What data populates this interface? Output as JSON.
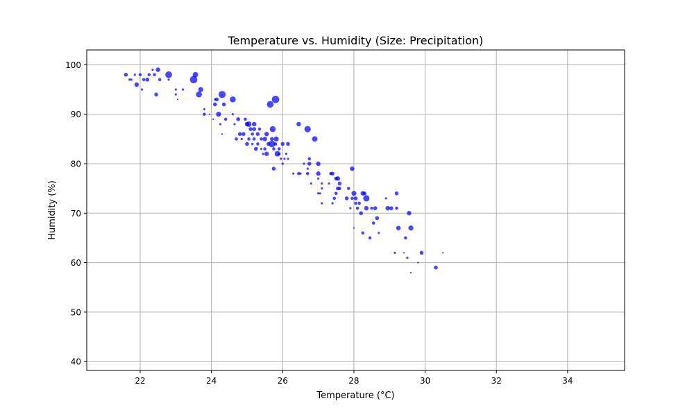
{
  "chart_data": {
    "type": "scatter",
    "title": "Temperature vs. Humidity (Size: Precipitation)",
    "xlabel": "Temperature (°C)",
    "ylabel": "Humidity (%)",
    "xlim": [
      20.5,
      35.6
    ],
    "ylim": [
      38.2,
      103
    ],
    "xticks": [
      22,
      24,
      26,
      28,
      30,
      32,
      34
    ],
    "yticks": [
      40,
      50,
      60,
      70,
      80,
      90,
      100
    ],
    "xtick_labels": [
      "22",
      "24",
      "26",
      "28",
      "30",
      "32",
      "34"
    ],
    "ytick_labels": [
      "40",
      "50",
      "60",
      "70",
      "80",
      "90",
      "100"
    ],
    "grid": true,
    "legend": "none",
    "colors": {
      "point": "#0000ff",
      "grid": "#b0b0b0",
      "axis": "#000000"
    },
    "size_encoding": "Precipitation",
    "points": [
      {
        "x": 21.6,
        "y": 98,
        "p": 3
      },
      {
        "x": 21.7,
        "y": 97,
        "p": 1
      },
      {
        "x": 21.75,
        "y": 97,
        "p": 1
      },
      {
        "x": 21.85,
        "y": 98,
        "p": 1
      },
      {
        "x": 21.9,
        "y": 96,
        "p": 4
      },
      {
        "x": 22.0,
        "y": 98,
        "p": 2
      },
      {
        "x": 22.05,
        "y": 95,
        "p": 1
      },
      {
        "x": 22.1,
        "y": 97,
        "p": 2
      },
      {
        "x": 22.2,
        "y": 97,
        "p": 3
      },
      {
        "x": 22.25,
        "y": 98,
        "p": 2
      },
      {
        "x": 22.35,
        "y": 99,
        "p": 1
      },
      {
        "x": 22.4,
        "y": 98,
        "p": 2
      },
      {
        "x": 22.45,
        "y": 94,
        "p": 3
      },
      {
        "x": 22.5,
        "y": 99,
        "p": 4
      },
      {
        "x": 22.55,
        "y": 97,
        "p": 2
      },
      {
        "x": 22.8,
        "y": 98,
        "p": 9
      },
      {
        "x": 22.8,
        "y": 97,
        "p": 1
      },
      {
        "x": 23.0,
        "y": 95,
        "p": 1
      },
      {
        "x": 23.0,
        "y": 94,
        "p": 1
      },
      {
        "x": 23.05,
        "y": 93,
        "p": 0.5
      },
      {
        "x": 23.2,
        "y": 95,
        "p": 1
      },
      {
        "x": 23.5,
        "y": 97,
        "p": 11
      },
      {
        "x": 23.55,
        "y": 98,
        "p": 6
      },
      {
        "x": 23.65,
        "y": 94,
        "p": 7
      },
      {
        "x": 23.7,
        "y": 95,
        "p": 5
      },
      {
        "x": 23.8,
        "y": 90,
        "p": 2
      },
      {
        "x": 23.8,
        "y": 91,
        "p": 1
      },
      {
        "x": 23.95,
        "y": 90,
        "p": 0.5
      },
      {
        "x": 24.05,
        "y": 89,
        "p": 0.5
      },
      {
        "x": 24.1,
        "y": 93,
        "p": 1
      },
      {
        "x": 24.1,
        "y": 92,
        "p": 3
      },
      {
        "x": 24.15,
        "y": 93,
        "p": 3
      },
      {
        "x": 24.2,
        "y": 90,
        "p": 5
      },
      {
        "x": 24.25,
        "y": 88,
        "p": 1
      },
      {
        "x": 24.3,
        "y": 94,
        "p": 10
      },
      {
        "x": 24.3,
        "y": 86,
        "p": 0.5
      },
      {
        "x": 24.35,
        "y": 92,
        "p": 3
      },
      {
        "x": 24.4,
        "y": 89,
        "p": 2
      },
      {
        "x": 24.6,
        "y": 93,
        "p": 7
      },
      {
        "x": 24.6,
        "y": 90,
        "p": 1
      },
      {
        "x": 24.65,
        "y": 88,
        "p": 1
      },
      {
        "x": 24.7,
        "y": 85,
        "p": 2
      },
      {
        "x": 24.75,
        "y": 89,
        "p": 3
      },
      {
        "x": 24.8,
        "y": 86,
        "p": 3
      },
      {
        "x": 24.85,
        "y": 85,
        "p": 1
      },
      {
        "x": 24.9,
        "y": 86,
        "p": 3
      },
      {
        "x": 24.95,
        "y": 89,
        "p": 2
      },
      {
        "x": 25.0,
        "y": 88,
        "p": 4
      },
      {
        "x": 25.0,
        "y": 84,
        "p": 3
      },
      {
        "x": 25.05,
        "y": 88,
        "p": 6
      },
      {
        "x": 25.05,
        "y": 85,
        "p": 2
      },
      {
        "x": 25.1,
        "y": 87,
        "p": 3
      },
      {
        "x": 25.15,
        "y": 86,
        "p": 2
      },
      {
        "x": 25.15,
        "y": 84,
        "p": 1
      },
      {
        "x": 25.2,
        "y": 88,
        "p": 4
      },
      {
        "x": 25.2,
        "y": 87,
        "p": 3
      },
      {
        "x": 25.2,
        "y": 85,
        "p": 2
      },
      {
        "x": 25.25,
        "y": 83,
        "p": 3
      },
      {
        "x": 25.3,
        "y": 86,
        "p": 3
      },
      {
        "x": 25.3,
        "y": 84,
        "p": 2
      },
      {
        "x": 25.35,
        "y": 87,
        "p": 2
      },
      {
        "x": 25.4,
        "y": 85,
        "p": 2
      },
      {
        "x": 25.4,
        "y": 83,
        "p": 1
      },
      {
        "x": 25.45,
        "y": 82,
        "p": 1
      },
      {
        "x": 25.5,
        "y": 85,
        "p": 4
      },
      {
        "x": 25.5,
        "y": 83,
        "p": 2
      },
      {
        "x": 25.55,
        "y": 82,
        "p": 4
      },
      {
        "x": 25.55,
        "y": 86,
        "p": 4
      },
      {
        "x": 25.6,
        "y": 84,
        "p": 3
      },
      {
        "x": 25.65,
        "y": 92,
        "p": 9
      },
      {
        "x": 25.7,
        "y": 84,
        "p": 9
      },
      {
        "x": 25.7,
        "y": 85,
        "p": 3
      },
      {
        "x": 25.72,
        "y": 87,
        "p": 7
      },
      {
        "x": 25.75,
        "y": 83,
        "p": 2
      },
      {
        "x": 25.75,
        "y": 79,
        "p": 3
      },
      {
        "x": 25.8,
        "y": 93,
        "p": 11
      },
      {
        "x": 25.8,
        "y": 84,
        "p": 2
      },
      {
        "x": 25.82,
        "y": 85,
        "p": 5
      },
      {
        "x": 25.85,
        "y": 82,
        "p": 6
      },
      {
        "x": 25.9,
        "y": 82,
        "p": 2
      },
      {
        "x": 25.9,
        "y": 83,
        "p": 2
      },
      {
        "x": 25.95,
        "y": 81,
        "p": 1
      },
      {
        "x": 26.0,
        "y": 84,
        "p": 3
      },
      {
        "x": 26.0,
        "y": 80,
        "p": 1
      },
      {
        "x": 26.05,
        "y": 81,
        "p": 1
      },
      {
        "x": 26.1,
        "y": 82,
        "p": 1
      },
      {
        "x": 26.15,
        "y": 81,
        "p": 1
      },
      {
        "x": 26.15,
        "y": 84,
        "p": 3
      },
      {
        "x": 26.3,
        "y": 78,
        "p": 1
      },
      {
        "x": 26.45,
        "y": 78,
        "p": 2
      },
      {
        "x": 26.45,
        "y": 88,
        "p": 4
      },
      {
        "x": 26.5,
        "y": 78,
        "p": 1
      },
      {
        "x": 26.6,
        "y": 80,
        "p": 1
      },
      {
        "x": 26.7,
        "y": 87,
        "p": 8
      },
      {
        "x": 26.7,
        "y": 79,
        "p": 1
      },
      {
        "x": 26.7,
        "y": 78,
        "p": 2
      },
      {
        "x": 26.75,
        "y": 81,
        "p": 2
      },
      {
        "x": 26.75,
        "y": 80,
        "p": 3
      },
      {
        "x": 26.8,
        "y": 76,
        "p": 1
      },
      {
        "x": 26.9,
        "y": 85,
        "p": 6
      },
      {
        "x": 27.0,
        "y": 80,
        "p": 4
      },
      {
        "x": 27.0,
        "y": 78,
        "p": 4
      },
      {
        "x": 27.0,
        "y": 77,
        "p": 1
      },
      {
        "x": 27.0,
        "y": 74,
        "p": 1
      },
      {
        "x": 27.05,
        "y": 74,
        "p": 1
      },
      {
        "x": 27.1,
        "y": 76,
        "p": 1
      },
      {
        "x": 27.1,
        "y": 75,
        "p": 1
      },
      {
        "x": 27.1,
        "y": 72,
        "p": 1
      },
      {
        "x": 27.3,
        "y": 76,
        "p": 1
      },
      {
        "x": 27.35,
        "y": 78,
        "p": 2
      },
      {
        "x": 27.4,
        "y": 78,
        "p": 3
      },
      {
        "x": 27.4,
        "y": 72,
        "p": 1
      },
      {
        "x": 27.45,
        "y": 73,
        "p": 2
      },
      {
        "x": 27.5,
        "y": 77,
        "p": 3
      },
      {
        "x": 27.5,
        "y": 74,
        "p": 2
      },
      {
        "x": 27.55,
        "y": 77,
        "p": 4
      },
      {
        "x": 27.55,
        "y": 75,
        "p": 3
      },
      {
        "x": 27.6,
        "y": 76,
        "p": 3
      },
      {
        "x": 27.6,
        "y": 75,
        "p": 2
      },
      {
        "x": 27.8,
        "y": 73,
        "p": 3
      },
      {
        "x": 27.85,
        "y": 75,
        "p": 2
      },
      {
        "x": 27.9,
        "y": 71,
        "p": 1
      },
      {
        "x": 27.95,
        "y": 79,
        "p": 4
      },
      {
        "x": 27.95,
        "y": 73,
        "p": 2
      },
      {
        "x": 28.0,
        "y": 74,
        "p": 5
      },
      {
        "x": 28.0,
        "y": 67,
        "p": 0.5
      },
      {
        "x": 28.05,
        "y": 72,
        "p": 2
      },
      {
        "x": 28.05,
        "y": 73,
        "p": 3
      },
      {
        "x": 28.1,
        "y": 71,
        "p": 2
      },
      {
        "x": 28.15,
        "y": 72,
        "p": 2
      },
      {
        "x": 28.2,
        "y": 70,
        "p": 3
      },
      {
        "x": 28.25,
        "y": 74,
        "p": 4
      },
      {
        "x": 28.25,
        "y": 66,
        "p": 2
      },
      {
        "x": 28.3,
        "y": 74,
        "p": 3
      },
      {
        "x": 28.35,
        "y": 73,
        "p": 8
      },
      {
        "x": 28.35,
        "y": 71,
        "p": 4
      },
      {
        "x": 28.45,
        "y": 65,
        "p": 2
      },
      {
        "x": 28.5,
        "y": 71,
        "p": 2
      },
      {
        "x": 28.55,
        "y": 68,
        "p": 2
      },
      {
        "x": 28.6,
        "y": 71,
        "p": 3
      },
      {
        "x": 28.65,
        "y": 69,
        "p": 3
      },
      {
        "x": 28.7,
        "y": 66,
        "p": 1
      },
      {
        "x": 28.9,
        "y": 73,
        "p": 1
      },
      {
        "x": 28.95,
        "y": 71,
        "p": 4
      },
      {
        "x": 29.05,
        "y": 71,
        "p": 3
      },
      {
        "x": 29.15,
        "y": 62,
        "p": 1
      },
      {
        "x": 29.2,
        "y": 74,
        "p": 3
      },
      {
        "x": 29.2,
        "y": 71,
        "p": 2
      },
      {
        "x": 29.25,
        "y": 67,
        "p": 4
      },
      {
        "x": 29.4,
        "y": 62,
        "p": 0.5
      },
      {
        "x": 29.45,
        "y": 65,
        "p": 2
      },
      {
        "x": 29.5,
        "y": 61,
        "p": 1
      },
      {
        "x": 29.55,
        "y": 70,
        "p": 4
      },
      {
        "x": 29.6,
        "y": 67,
        "p": 5
      },
      {
        "x": 29.6,
        "y": 58,
        "p": 0.5
      },
      {
        "x": 29.8,
        "y": 60,
        "p": 0.5
      },
      {
        "x": 29.9,
        "y": 62,
        "p": 3
      },
      {
        "x": 30.3,
        "y": 59,
        "p": 3
      },
      {
        "x": 30.5,
        "y": 62,
        "p": 0.5
      }
    ]
  }
}
